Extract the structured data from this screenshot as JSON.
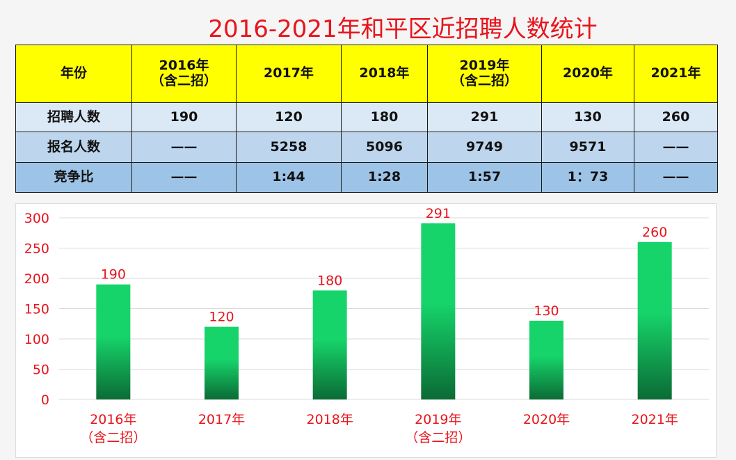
{
  "title": "2016-2021年和平区近招聘人数统计",
  "table": {
    "header": [
      "年份",
      [
        "2016年",
        "（含二招）"
      ],
      "2017年",
      "2018年",
      [
        "2019年",
        "（含二招）"
      ],
      "2020年",
      "2021年"
    ],
    "rows": [
      [
        "招聘人数",
        "190",
        "120",
        "180",
        "291",
        "130",
        "260"
      ],
      [
        "报名人数",
        "——",
        "5258",
        "5096",
        "9749",
        "9571",
        "——"
      ],
      [
        "竞争比",
        "——",
        "1:44",
        "1:28",
        "1:57",
        "1：73",
        "——"
      ]
    ]
  },
  "chart_data": {
    "type": "bar",
    "categories": [
      [
        "2016年",
        "（含二招）"
      ],
      [
        "2017年"
      ],
      [
        "2018年"
      ],
      [
        "2019年",
        "（含二招）"
      ],
      [
        "2020年"
      ],
      [
        "2021年"
      ]
    ],
    "values": [
      190,
      120,
      180,
      291,
      130,
      260
    ],
    "title": "",
    "xlabel": "",
    "ylabel": "",
    "ylim": [
      0,
      300
    ],
    "yticks": [
      0,
      50,
      100,
      150,
      200,
      250,
      300
    ],
    "grid": true,
    "colors": {
      "bar_top": "#16d46a",
      "bar_bottom": "#0b6b35",
      "label": "#e8141b",
      "grid": "#d9d9d9"
    }
  }
}
